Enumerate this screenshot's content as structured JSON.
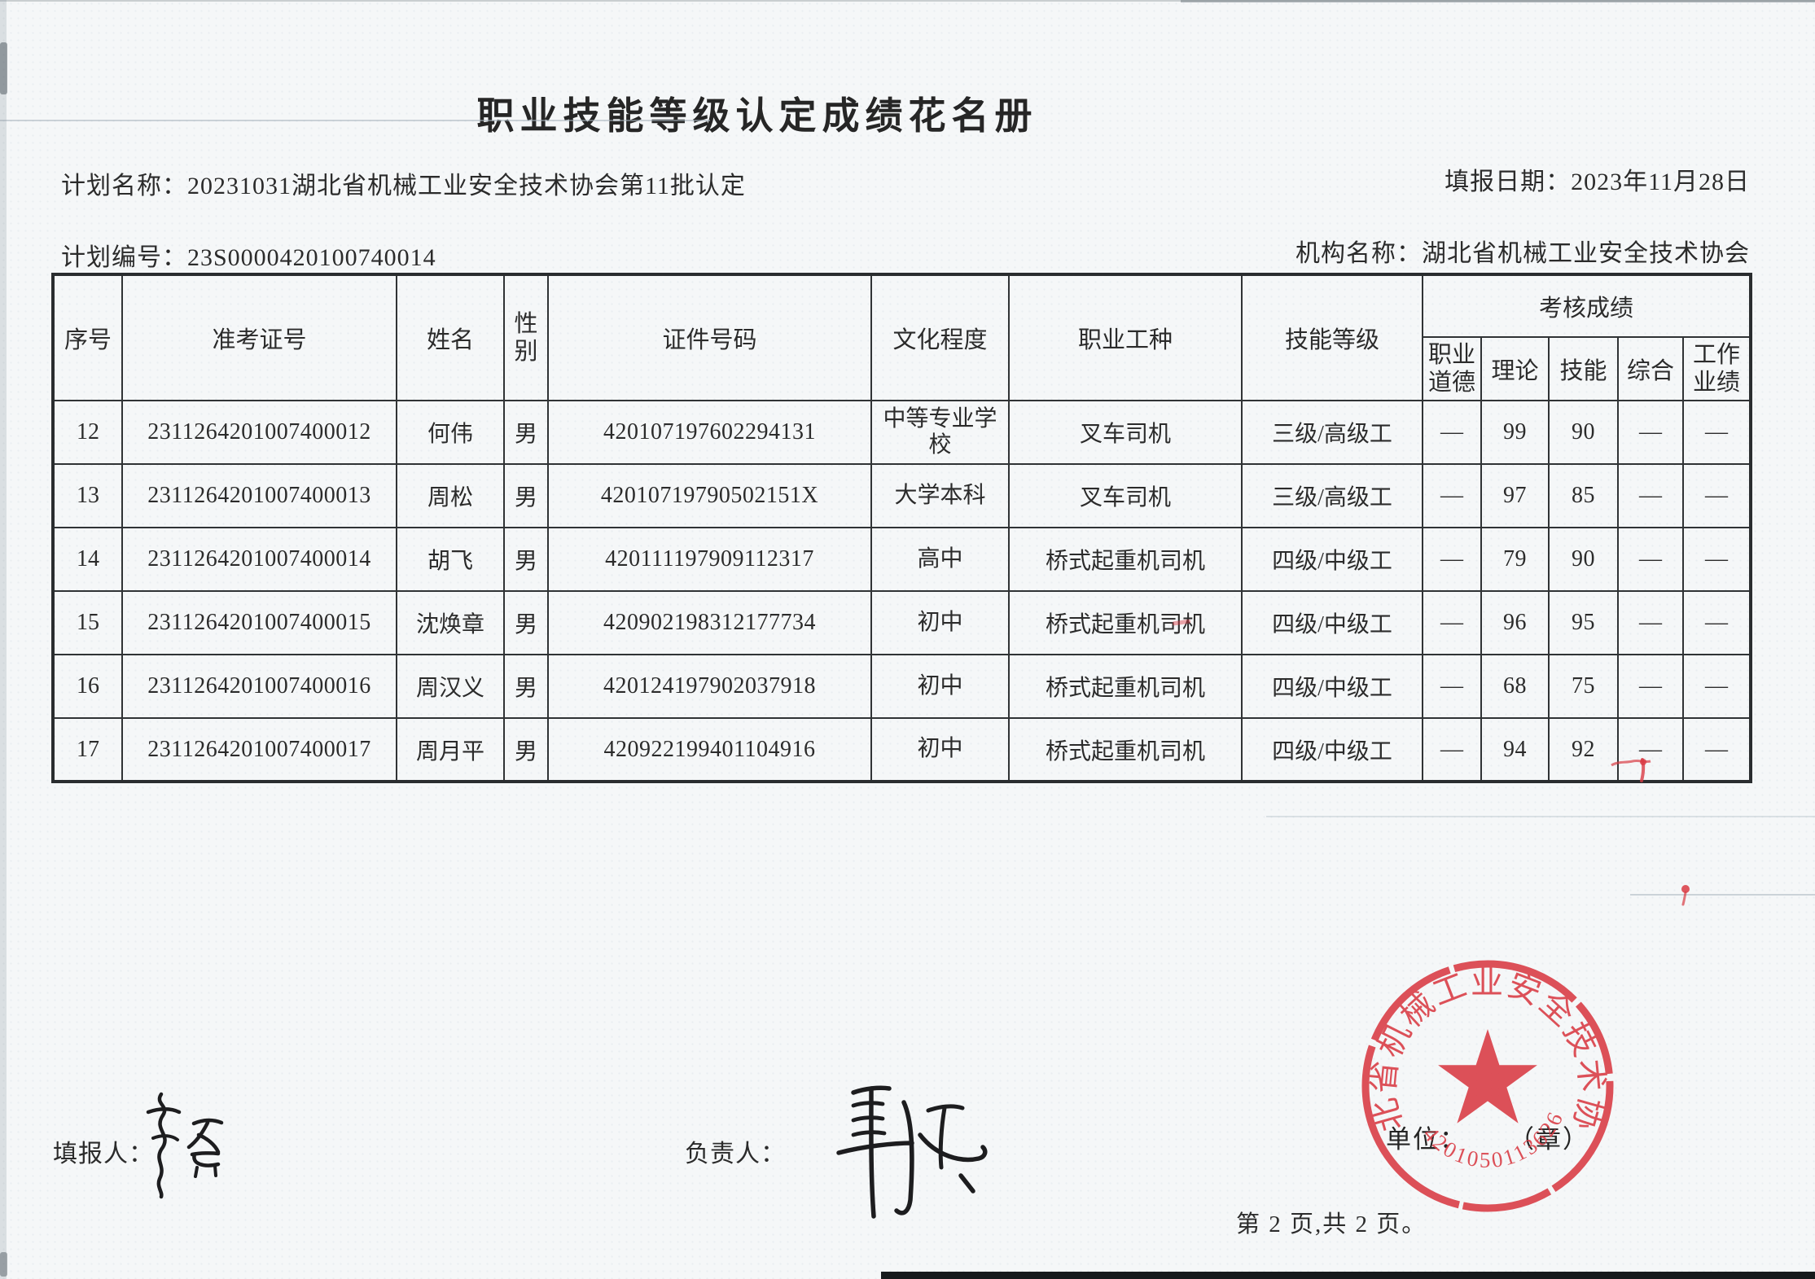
{
  "page": {
    "title": "职业技能等级认定成绩花名册",
    "plan_name_label": "计划名称：",
    "plan_name_value": "20231031湖北省机械工业安全技术协会第11批认定",
    "report_date_label": "填报日期：",
    "report_date_value": "2023年11月28日",
    "plan_no_label": "计划编号：",
    "plan_no_value": "23S0000420100740014",
    "org_name_label": "机构名称：",
    "org_name_value": "湖北省机械工业安全技术协会"
  },
  "table": {
    "headers": {
      "seq": "序号",
      "exam_no": "准考证号",
      "name": "姓名",
      "gender": "性别",
      "id_no": "证件号码",
      "education": "文化程度",
      "occupation": "职业工种",
      "skill_level": "技能等级",
      "scores_group": "考核成绩",
      "ethics": "职业道德",
      "theory": "理论",
      "skill": "技能",
      "comprehensive": "综合",
      "work_performance": "工作业绩"
    },
    "rows": [
      [
        "12",
        "2311264201007400012",
        "何伟",
        "男",
        "420107197602294131",
        "中等专业学校",
        "叉车司机",
        "三级/高级工",
        "—",
        "99",
        "90",
        "—",
        "—"
      ],
      [
        "13",
        "2311264201007400013",
        "周松",
        "男",
        "42010719790502151X",
        "大学本科",
        "叉车司机",
        "三级/高级工",
        "—",
        "97",
        "85",
        "—",
        "—"
      ],
      [
        "14",
        "2311264201007400014",
        "胡飞",
        "男",
        "420111197909112317",
        "高中",
        "桥式起重机司机",
        "四级/中级工",
        "—",
        "79",
        "90",
        "—",
        "—"
      ],
      [
        "15",
        "2311264201007400015",
        "沈焕章",
        "男",
        "420902198312177734",
        "初中",
        "桥式起重机司机",
        "四级/中级工",
        "—",
        "96",
        "95",
        "—",
        "—"
      ],
      [
        "16",
        "2311264201007400016",
        "周汉义",
        "男",
        "420124197902037918",
        "初中",
        "桥式起重机司机",
        "四级/中级工",
        "—",
        "68",
        "75",
        "—",
        "—"
      ],
      [
        "17",
        "2311264201007400017",
        "周月平",
        "男",
        "420922199401104916",
        "初中",
        "桥式起重机司机",
        "四级/中级工",
        "—",
        "94",
        "92",
        "—",
        "—"
      ]
    ]
  },
  "signoff": {
    "filler_label": "填报人：",
    "manager_label": "负责人：",
    "unit_label": "单位：",
    "unit_seal_placeholder": "（章）",
    "page_info": "第 2 页,共 2 页。"
  },
  "stamp": {
    "ring_text": "湖北省机械工业安全技术协会",
    "serial_number": "4201050113626",
    "color": "#d93a43"
  },
  "colors": {
    "ink": "#2b2b2b",
    "table_border": "#303335",
    "paper": "#f5f7f8",
    "stamp_red": "#d93a43"
  }
}
